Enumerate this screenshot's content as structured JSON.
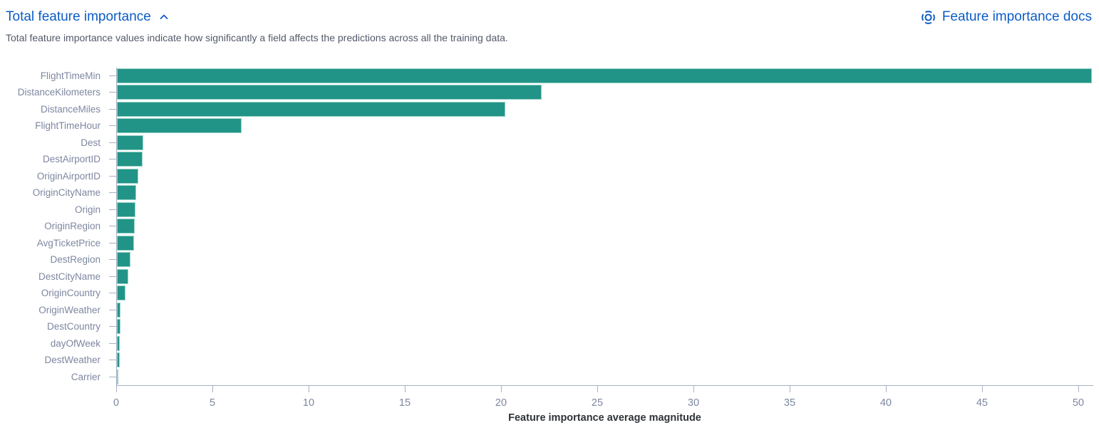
{
  "header": {
    "title": "Total feature importance",
    "docs_link_label": "Feature importance docs"
  },
  "description": "Total feature importance values indicate how significantly a field affects the predictions across all the training data.",
  "colors": {
    "link_blue": "#0d5cc4",
    "bar_fill": "#229487",
    "bar_stroke": "#93d1c6",
    "axis_line": "#a6b1c4",
    "axis_label_text": "#7d87a0",
    "description_text": "#53596a",
    "axis_title_text": "#2f3338"
  },
  "icons": {
    "collapse": "chevron-up-icon",
    "docs": "life-ring-icon"
  },
  "chart_data": {
    "type": "bar",
    "orientation": "horizontal",
    "title": "",
    "xlabel": "Feature importance average magnitude",
    "ylabel": "",
    "grid": false,
    "legend": false,
    "xlim": [
      0,
      50.78
    ],
    "xticks": [
      0,
      5,
      10,
      15,
      20,
      25,
      30,
      35,
      40,
      45,
      50
    ],
    "categories": [
      "FlightTimeMin",
      "DistanceKilometers",
      "DistanceMiles",
      "FlightTimeHour",
      "Dest",
      "DestAirportID",
      "OriginAirportID",
      "OriginCityName",
      "Origin",
      "OriginRegion",
      "AvgTicketPrice",
      "DestRegion",
      "DestCityName",
      "OriginCountry",
      "OriginWeather",
      "DestCountry",
      "dayOfWeek",
      "DestWeather",
      "Carrier"
    ],
    "values": [
      50.7,
      22.1,
      20.2,
      6.5,
      1.38,
      1.32,
      1.1,
      0.99,
      0.96,
      0.93,
      0.88,
      0.7,
      0.59,
      0.46,
      0.19,
      0.18,
      0.16,
      0.14,
      0.05
    ]
  }
}
